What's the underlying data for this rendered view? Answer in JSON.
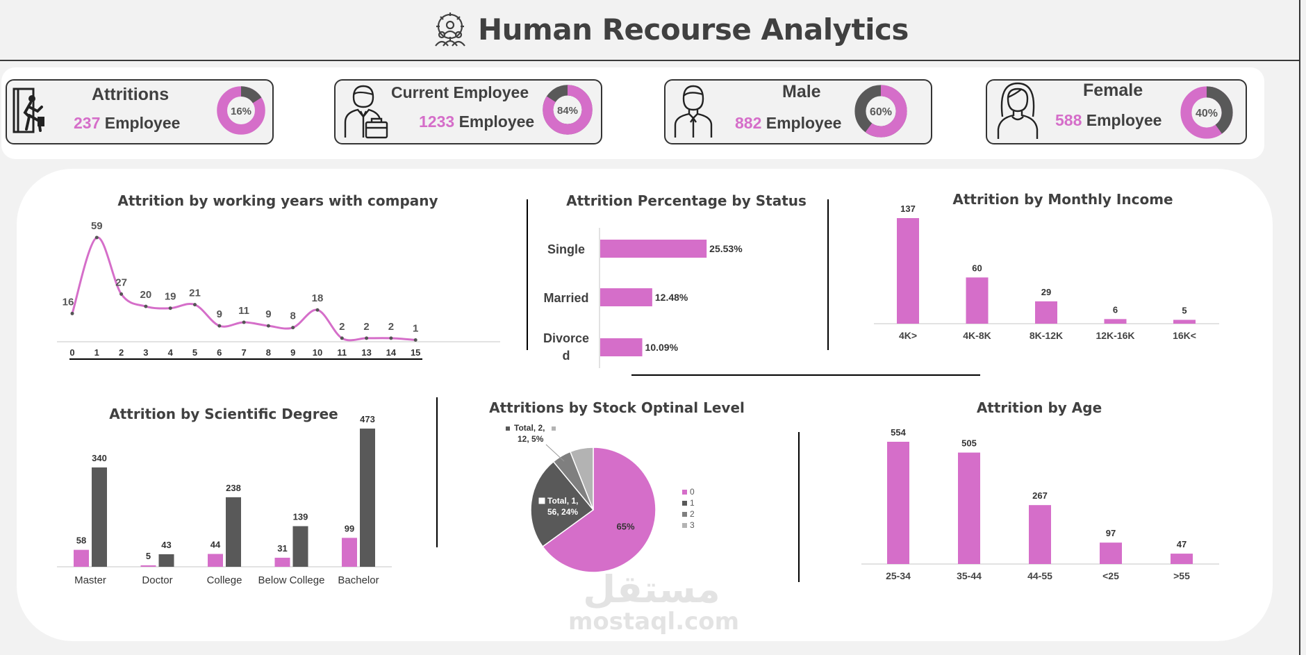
{
  "header": {
    "title": "Human Recourse Analytics",
    "icon": "team-gear-icon"
  },
  "kpis": [
    {
      "title": "Attritions",
      "value": "237",
      "unit": "Employee",
      "percent_label": "16%",
      "percent": 16,
      "icon": "exit-door-icon"
    },
    {
      "title": "Current Employee",
      "value": "1233",
      "unit": "Employee",
      "percent_label": "84%",
      "percent": 84,
      "icon": "businessman-briefcase-icon"
    },
    {
      "title": "Male",
      "value": "882",
      "unit": "Employee",
      "percent_label": "60%",
      "percent": 60,
      "icon": "man-icon"
    },
    {
      "title": "Female",
      "value": "588",
      "unit": "Employee",
      "percent_label": "40%",
      "percent": 40,
      "icon": "woman-icon"
    }
  ],
  "colors": {
    "primary": "#d56ec9",
    "secondary": "#595959",
    "text": "#404040",
    "background": "#f2f2f2"
  },
  "watermark": {
    "arabic": "مستقل",
    "latin": "mostaql.com"
  },
  "chart_data": [
    {
      "type": "line",
      "title": "Attrition by working years with company",
      "x": [
        "0",
        "1",
        "2",
        "3",
        "4",
        "5",
        "6",
        "7",
        "8",
        "9",
        "10",
        "11",
        "13",
        "14",
        "15"
      ],
      "values": [
        16,
        59,
        27,
        20,
        19,
        21,
        9,
        11,
        9,
        8,
        18,
        2,
        2,
        2,
        1
      ],
      "smooth": true,
      "color": "#d56ec9"
    },
    {
      "type": "bar",
      "orientation": "horizontal",
      "title": "Attrition Percentage by Status",
      "categories": [
        "Single",
        "Married",
        "Divorced"
      ],
      "category_labels": [
        [
          "Single"
        ],
        [
          "Married"
        ],
        [
          "Divorce",
          "d"
        ]
      ],
      "values": [
        25.53,
        12.48,
        10.09
      ],
      "value_labels": [
        "25.53%",
        "12.48%",
        "10.09%"
      ],
      "color": "#d56ec9"
    },
    {
      "type": "bar",
      "title": "Attrition by Monthly Income",
      "categories": [
        "4K>",
        "4K-8K",
        "8K-12K",
        "12K-16K",
        "16K<"
      ],
      "values": [
        137,
        60,
        29,
        6,
        5
      ],
      "color": "#d56ec9"
    },
    {
      "type": "bar",
      "title": "Attrition by Scientific Degree",
      "categories": [
        "Master",
        "Doctor",
        "College",
        "Below College",
        "Bachelor"
      ],
      "series": [
        {
          "values": [
            58,
            5,
            44,
            31,
            99
          ],
          "color": "#d56ec9"
        },
        {
          "values": [
            340,
            43,
            238,
            139,
            473
          ],
          "color": "#595959"
        }
      ]
    },
    {
      "type": "pie",
      "title": "Attritions by Stock Optinal Level",
      "categories": [
        "0",
        "1",
        "2",
        "3"
      ],
      "values": [
        65,
        24,
        5,
        6
      ],
      "colors": [
        "#d56ec9",
        "#595959",
        "#7f7f7f",
        "#b3b3b3"
      ],
      "labels": {
        "slice0": "65%",
        "slice1": [
          "Total, 1,",
          "56, 24%"
        ],
        "slice2": [
          "Total, 2,",
          "12, 5%"
        ]
      },
      "legend": "right"
    },
    {
      "type": "bar",
      "title": "Attrition by Age",
      "categories": [
        "25-34",
        "35-44",
        "44-55",
        "<25",
        ">55"
      ],
      "values": [
        554,
        505,
        267,
        97,
        47
      ],
      "color": "#d56ec9"
    }
  ]
}
